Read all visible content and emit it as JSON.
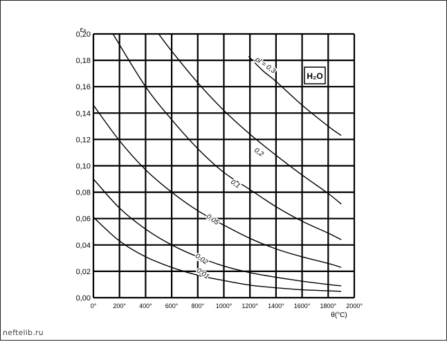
{
  "watermark": "neftelib.ru",
  "chart_data": {
    "type": "line",
    "ylabel": "ε₀",
    "xlabel": "θ(°C)",
    "xlim": [
      0,
      2000
    ],
    "ylim": [
      0,
      0.2
    ],
    "grid": true,
    "x_ticks": [
      0,
      200,
      400,
      600,
      800,
      1000,
      1200,
      1400,
      1600,
      1800,
      2000
    ],
    "x_tick_labels": [
      "0°",
      "200°",
      "400°",
      "600°",
      "800°",
      "1000°",
      "1200°",
      "1400°",
      "1600°",
      "1800°",
      "2000°"
    ],
    "y_ticks": [
      0,
      0.02,
      0.04,
      0.06,
      0.08,
      0.1,
      0.12,
      0.14,
      0.16,
      0.18,
      0.2
    ],
    "y_tick_labels": [
      "0,00",
      "0,02",
      "0,04",
      "0,06",
      "0,08",
      "0,10",
      "0,12",
      "0,14",
      "0,16",
      "0,18",
      "0,20"
    ],
    "annotation_box": "H₂O",
    "series": [
      {
        "name": "0,01",
        "label_x": 830,
        "label_y": 0.017,
        "points": [
          [
            0,
            0.061
          ],
          [
            200,
            0.043
          ],
          [
            400,
            0.031
          ],
          [
            600,
            0.023
          ],
          [
            800,
            0.017
          ],
          [
            1000,
            0.013
          ],
          [
            1200,
            0.0095
          ],
          [
            1400,
            0.0075
          ],
          [
            1600,
            0.006
          ],
          [
            1800,
            0.0052
          ],
          [
            1900,
            0.0048
          ]
        ]
      },
      {
        "name": "0,02",
        "label_x": 820,
        "label_y": 0.028,
        "points": [
          [
            0,
            0.09
          ],
          [
            200,
            0.068
          ],
          [
            400,
            0.052
          ],
          [
            600,
            0.04
          ],
          [
            800,
            0.031
          ],
          [
            1000,
            0.024
          ],
          [
            1200,
            0.019
          ],
          [
            1400,
            0.0155
          ],
          [
            1600,
            0.0125
          ],
          [
            1800,
            0.01
          ],
          [
            1900,
            0.009
          ]
        ]
      },
      {
        "name": "0,05",
        "label_x": 905,
        "label_y": 0.058,
        "points": [
          [
            0,
            0.146
          ],
          [
            200,
            0.119
          ],
          [
            400,
            0.097
          ],
          [
            600,
            0.08
          ],
          [
            800,
            0.066
          ],
          [
            1000,
            0.055
          ],
          [
            1200,
            0.045
          ],
          [
            1400,
            0.037
          ],
          [
            1600,
            0.031
          ],
          [
            1800,
            0.026
          ],
          [
            1900,
            0.023
          ]
        ]
      },
      {
        "name": "0,1",
        "label_x": 1080,
        "label_y": 0.085,
        "points": [
          [
            150,
            0.2
          ],
          [
            400,
            0.16
          ],
          [
            600,
            0.135
          ],
          [
            800,
            0.113
          ],
          [
            1000,
            0.095
          ],
          [
            1200,
            0.082
          ],
          [
            1400,
            0.069
          ],
          [
            1600,
            0.058
          ],
          [
            1800,
            0.049
          ],
          [
            1900,
            0.044
          ]
        ]
      },
      {
        "name": "0,2",
        "label_x": 1260,
        "label_y": 0.109,
        "points": [
          [
            500,
            0.2
          ],
          [
            600,
            0.187
          ],
          [
            800,
            0.163
          ],
          [
            1000,
            0.142
          ],
          [
            1200,
            0.124
          ],
          [
            1400,
            0.108
          ],
          [
            1600,
            0.093
          ],
          [
            1800,
            0.079
          ],
          [
            1900,
            0.071
          ]
        ]
      },
      {
        "name": "pl = 0,3",
        "label_x": 1310,
        "label_y": 0.175,
        "points": [
          [
            1190,
            0.183
          ],
          [
            1300,
            0.172
          ],
          [
            1400,
            0.164
          ],
          [
            1600,
            0.146
          ],
          [
            1800,
            0.13
          ],
          [
            1900,
            0.123
          ]
        ]
      }
    ]
  }
}
